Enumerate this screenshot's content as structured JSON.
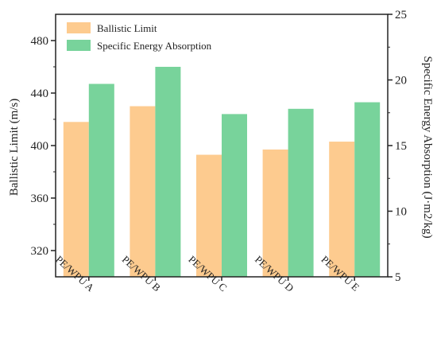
{
  "chart_data": {
    "type": "bar",
    "title": "",
    "categories": [
      "PE/WPU A",
      "PE/WPU B",
      "PE/WPU C",
      "PE/WPU D",
      "PE/WPU E"
    ],
    "series": [
      {
        "name": "Ballistic Limit",
        "axis": "left",
        "color": "#FDCB8F",
        "values": [
          418,
          430,
          393,
          397,
          403
        ]
      },
      {
        "name": "Specific Energy Absorption",
        "axis": "right",
        "color": "#78D39B",
        "values": [
          19.7,
          21.0,
          17.4,
          17.8,
          18.3
        ]
      }
    ],
    "ylabel_left": "Ballistic Limit (m/s)",
    "ylabel_right": "Specific Energy Absorption (J·m2/kg)",
    "ylim_left": [
      300,
      500
    ],
    "ylim_right": [
      5,
      25
    ],
    "yticks_left": [
      "320",
      "360",
      "400",
      "440",
      "480"
    ],
    "yticks_right": [
      "5",
      "10",
      "15",
      "20",
      "25"
    ],
    "legend_position": "top-left",
    "grid": false
  }
}
